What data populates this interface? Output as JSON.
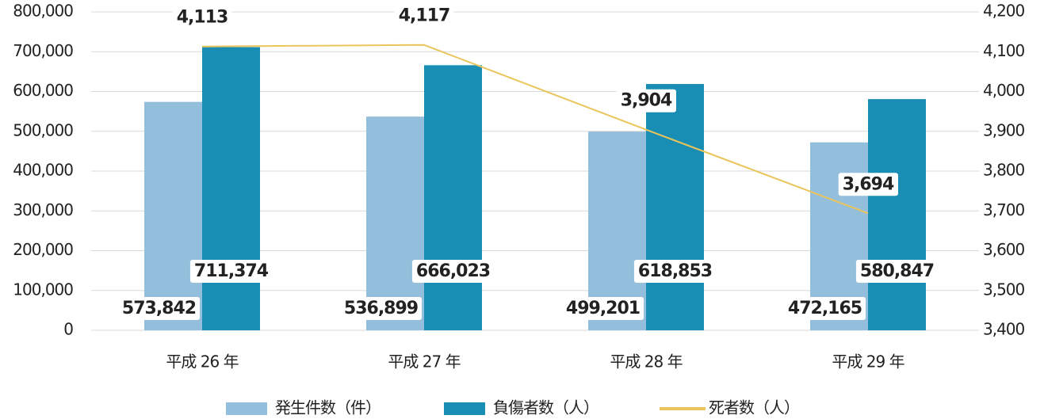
{
  "chart_data": {
    "type": "bar",
    "categories": [
      "平成 26 年",
      "平成 27 年",
      "平成 28 年",
      "平成 29 年"
    ],
    "series": [
      {
        "name": "発生件数（件）",
        "color": "#93bedc",
        "values": [
          573842,
          536899,
          499201,
          472165
        ],
        "value_labels": [
          "573,842",
          "536,899",
          "499,201",
          "472,165"
        ]
      },
      {
        "name": "負傷者数（人）",
        "color": "#1a8db4",
        "values": [
          711374,
          666023,
          618853,
          580847
        ],
        "value_labels": [
          "711,374",
          "666,023",
          "618,853",
          "580,847"
        ]
      },
      {
        "name": "死者数（人）",
        "type": "line",
        "axis": "y2",
        "color": "#e9c55c",
        "values": [
          4113,
          4117,
          3904,
          3694
        ],
        "value_labels": [
          "4,113",
          "4,117",
          "3,904",
          "3,694"
        ]
      }
    ],
    "ylim": [
      0,
      800000
    ],
    "yticks": [
      {
        "value": 0,
        "label": "0"
      },
      {
        "value": 100000,
        "label": "100,000"
      },
      {
        "value": 200000,
        "label": "200,000"
      },
      {
        "value": 300000,
        "label": "300,000"
      },
      {
        "value": 400000,
        "label": "400,000"
      },
      {
        "value": 500000,
        "label": "500,000"
      },
      {
        "value": 600000,
        "label": "600,000"
      },
      {
        "value": 700000,
        "label": "700,000"
      },
      {
        "value": 800000,
        "label": "800,000"
      }
    ],
    "y2lim": [
      3400,
      4200
    ],
    "y2ticks": [
      {
        "value": 3400,
        "label": "3,400"
      },
      {
        "value": 3500,
        "label": "3,500"
      },
      {
        "value": 3600,
        "label": "3,600"
      },
      {
        "value": 3700,
        "label": "3,700"
      },
      {
        "value": 3800,
        "label": "3,800"
      },
      {
        "value": 3900,
        "label": "3,900"
      },
      {
        "value": 4000,
        "label": "4,000"
      },
      {
        "value": 4100,
        "label": "4,100"
      },
      {
        "value": 4200,
        "label": "4,200"
      }
    ],
    "grid": true,
    "legend": "bottom"
  }
}
